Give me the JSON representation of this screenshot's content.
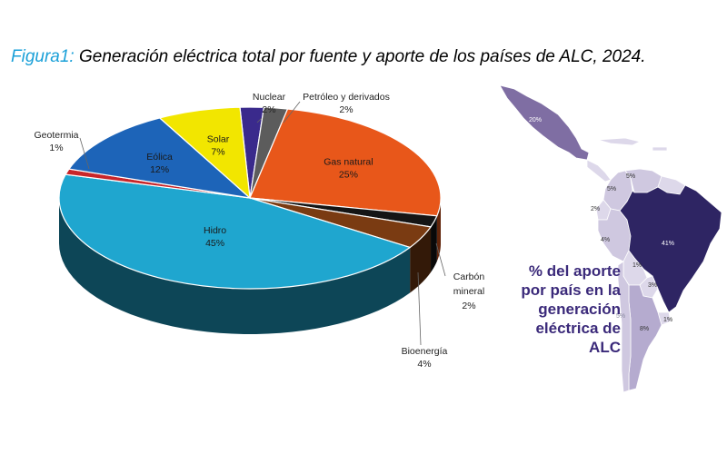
{
  "title": {
    "lead": "Figura1:",
    "text": "Generación eléctrica total por fuente y aporte de los países de ALC, 2024."
  },
  "chart_data": [
    {
      "type": "pie",
      "unit": "%",
      "slices": [
        {
          "label": "Nuclear",
          "value": 2,
          "color": "#3a2a8c"
        },
        {
          "label": "Petróleo y derivados",
          "value": 2,
          "color": "#5c5c5c"
        },
        {
          "label": "Gas natural",
          "value": 25,
          "color": "#e8571a"
        },
        {
          "label": "Carbón mineral",
          "value": 2,
          "color": "#151515"
        },
        {
          "label": "Bioenergía",
          "value": 4,
          "color": "#7a3b12"
        },
        {
          "label": "Hidro",
          "value": 45,
          "color": "#1fa6cf"
        },
        {
          "label": "Geotermia",
          "value": 1,
          "color": "#c8262a"
        },
        {
          "label": "Eólica",
          "value": 12,
          "color": "#1d64b8"
        },
        {
          "label": "Solar",
          "value": 7,
          "color": "#f2e600"
        }
      ]
    }
  ],
  "map": {
    "caption": "% del aporte por país en la generación eléctrica de ALC",
    "regions": [
      {
        "name": "mexico",
        "value": "20%",
        "color": "#7f6ea3"
      },
      {
        "name": "venezuela",
        "value": "5%",
        "color": "#cfc8e0"
      },
      {
        "name": "colombia",
        "value": "5%",
        "color": "#cfc8e0"
      },
      {
        "name": "ecuador",
        "value": "2%",
        "color": "#ddd8ea"
      },
      {
        "name": "peru",
        "value": "4%",
        "color": "#cfc8e0"
      },
      {
        "name": "brazil",
        "value": "41%",
        "color": "#2e2563"
      },
      {
        "name": "bolivia",
        "value": "1%",
        "color": "#ddd8ea"
      },
      {
        "name": "paraguay",
        "value": "3%",
        "color": "#ddd8ea"
      },
      {
        "name": "chile",
        "value": "5%",
        "color": "#cfc8e0"
      },
      {
        "name": "argentina",
        "value": "8%",
        "color": "#b5abcf"
      },
      {
        "name": "uruguay",
        "value": "1%",
        "color": "#ddd8ea"
      }
    ]
  }
}
